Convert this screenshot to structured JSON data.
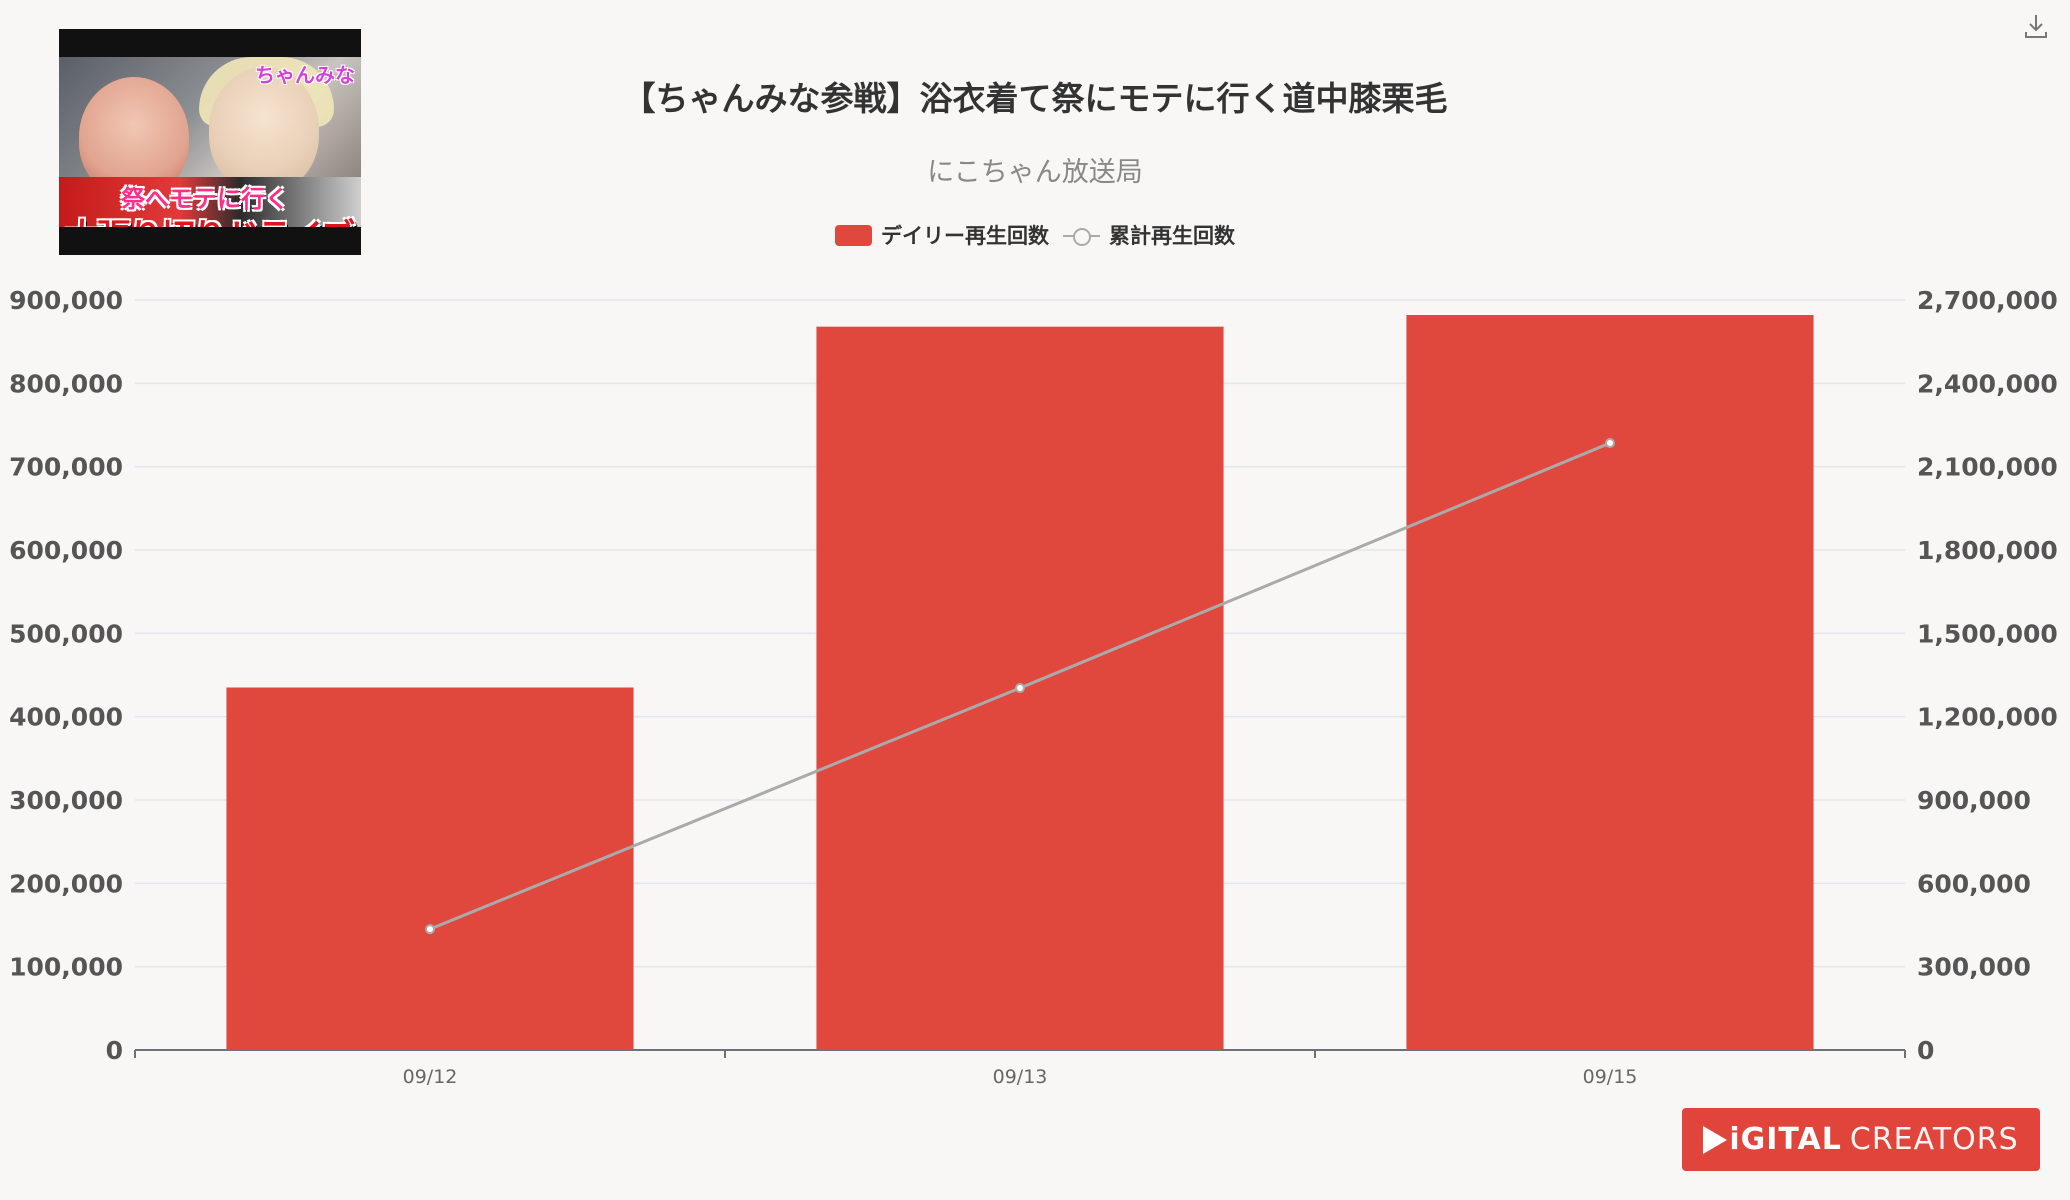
{
  "title": "【ちゃんみな参戦】浴衣着て祭にモテに行く道中膝栗毛",
  "subtitle": "にこちゃん放送局",
  "thumbnail": {
    "top_text": "ちゃんみな",
    "mid_text": "祭へモテに行く",
    "bottom_text": "大張り切りドライブ"
  },
  "logo": {
    "part1": "iGITAL",
    "part2": "CREATORS"
  },
  "colors": {
    "bar": "#e0483e",
    "line": "#aaaaaa",
    "grid": "#e3e5ee"
  },
  "chart_data": {
    "type": "bar",
    "categories": [
      "09/12",
      "09/13",
      "09/15"
    ],
    "series": [
      {
        "name": "デイリー再生回数",
        "type": "bar",
        "axis": "left",
        "values": [
          435000,
          868000,
          882000
        ]
      },
      {
        "name": "累計再生回数",
        "type": "line",
        "axis": "right",
        "values": [
          435000,
          1303000,
          2185000
        ]
      }
    ],
    "y_left": {
      "min": 0,
      "max": 900000,
      "ticks": [
        "0",
        "100,000",
        "200,000",
        "300,000",
        "400,000",
        "500,000",
        "600,000",
        "700,000",
        "800,000",
        "900,000"
      ]
    },
    "y_right": {
      "min": 0,
      "max": 2700000,
      "ticks": [
        "0",
        "300,000",
        "600,000",
        "900,000",
        "1,200,000",
        "1,500,000",
        "1,800,000",
        "2,100,000",
        "2,400,000",
        "2,700,000"
      ]
    },
    "grid": true,
    "legend_position": "top"
  }
}
